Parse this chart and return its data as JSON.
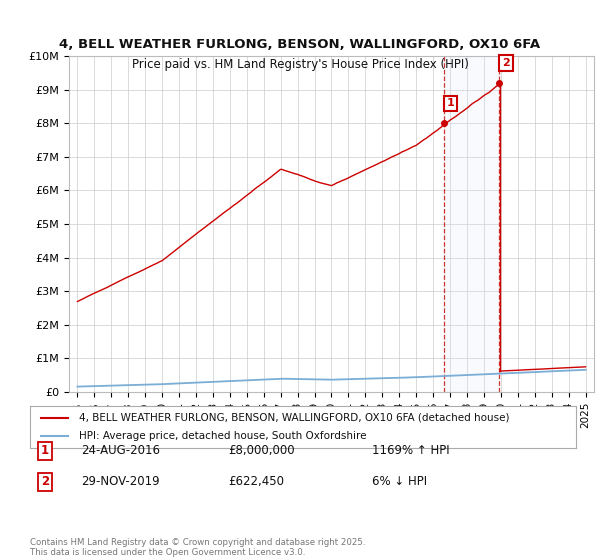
{
  "title": "4, BELL WEATHER FURLONG, BENSON, WALLINGFORD, OX10 6FA",
  "subtitle": "Price paid vs. HM Land Registry's House Price Index (HPI)",
  "ylim": [
    0,
    10000000
  ],
  "xlim_start": 1994.5,
  "xlim_end": 2025.5,
  "yticks": [
    0,
    1000000,
    2000000,
    3000000,
    4000000,
    5000000,
    6000000,
    7000000,
    8000000,
    9000000,
    10000000
  ],
  "ytick_labels": [
    "£0",
    "£1M",
    "£2M",
    "£3M",
    "£4M",
    "£5M",
    "£6M",
    "£7M",
    "£8M",
    "£9M",
    "£10M"
  ],
  "sale1_x": 2016.65,
  "sale1_y": 8000000,
  "sale2_x": 2019.92,
  "sale2_y": 622450,
  "sale1_label": "1",
  "sale2_label": "2",
  "sale1_date": "24-AUG-2016",
  "sale1_price": "£8,000,000",
  "sale1_hpi": "1169% ↑ HPI",
  "sale2_date": "29-NOV-2019",
  "sale2_price": "£622,450",
  "sale2_hpi": "6% ↓ HPI",
  "legend_line1": "4, BELL WEATHER FURLONG, BENSON, WALLINGFORD, OX10 6FA (detached house)",
  "legend_line2": "HPI: Average price, detached house, South Oxfordshire",
  "footer": "Contains HM Land Registry data © Crown copyright and database right 2025.\nThis data is licensed under the Open Government Licence v3.0.",
  "red_color": "#cc0000",
  "blue_color": "#7aaed6",
  "shade_color": "#dce8f5",
  "background_color": "#ffffff",
  "grid_color": "#cccccc"
}
